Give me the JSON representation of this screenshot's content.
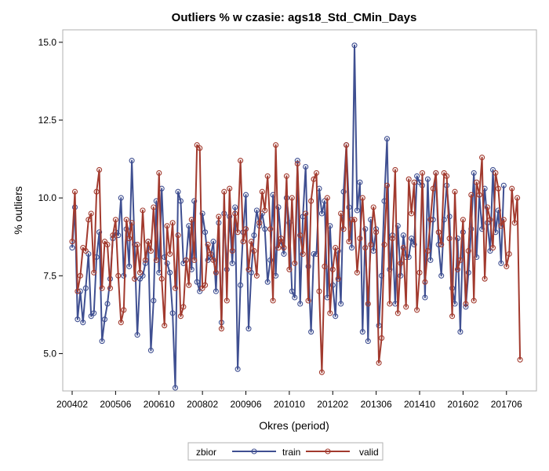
{
  "chart_data": {
    "type": "line",
    "title": "Outliers % w czasie: ags18_Std_CMin_Days",
    "xlabel": "Okres (period)",
    "ylabel": "% outliers",
    "x_ticks": [
      "200402",
      "200506",
      "200610",
      "200802",
      "200906",
      "201010",
      "201202",
      "201306",
      "201410",
      "201602",
      "201706"
    ],
    "y_ticks": [
      "5.0",
      "7.5",
      "10.0",
      "12.5",
      "15.0"
    ],
    "ylim": [
      3.8,
      15.4
    ],
    "x_start": "200402",
    "period_count": 168,
    "grid": false,
    "legend": {
      "position": "bottom",
      "title": "zbior",
      "entries": [
        "train",
        "valid"
      ]
    },
    "series": [
      {
        "name": "train",
        "color": "#3f4f91",
        "values": [
          8.4,
          9.7,
          6.1,
          7.0,
          6.0,
          7.1,
          8.2,
          6.2,
          6.3,
          8.1,
          8.9,
          5.4,
          6.1,
          6.6,
          7.4,
          8.7,
          8.9,
          8.8,
          10.0,
          7.5,
          9.0,
          7.8,
          11.2,
          8.5,
          5.6,
          7.4,
          7.5,
          7.9,
          8.6,
          5.1,
          6.7,
          9.9,
          7.6,
          10.3,
          8.1,
          7.9,
          7.6,
          6.3,
          3.9,
          10.2,
          9.9,
          7.9,
          8.0,
          9.1,
          7.7,
          9.9,
          7.3,
          7.0,
          9.5,
          8.9,
          8.0,
          8.1,
          8.6,
          7.0,
          9.2,
          6.0,
          9.5,
          7.7,
          9.4,
          7.9,
          9.7,
          4.5,
          7.2,
          8.9,
          10.1,
          5.8,
          7.6,
          8.8,
          9.6,
          9.1,
          9.5,
          9.0,
          7.3,
          8.0,
          10.1,
          7.5,
          9.7,
          8.6,
          8.2,
          10.0,
          9.2,
          7.0,
          6.8,
          11.2,
          6.6,
          9.4,
          11.0,
          7.8,
          5.7,
          8.2,
          8.2,
          10.3,
          9.5,
          9.9,
          6.8,
          9.1,
          7.2,
          6.2,
          8.3,
          6.6,
          10.2,
          11.7,
          9.7,
          8.4,
          14.9,
          9.6,
          10.5,
          5.7,
          9.0,
          5.4,
          9.3,
          8.3,
          9.0,
          5.9,
          7.5,
          9.9,
          11.9,
          7.7,
          8.8,
          6.6,
          9.1,
          7.5,
          8.8,
          8.1,
          8.1,
          8.7,
          8.5,
          10.7,
          10.5,
          10.4,
          6.8,
          10.6,
          8.0,
          9.3,
          10.8,
          8.5,
          7.5,
          9.3,
          10.4,
          9.4,
          7.1,
          6.6,
          8.7,
          5.7,
          8.9,
          6.5,
          7.6,
          9.0,
          10.8,
          8.1,
          10.1,
          9.0,
          10.3,
          9.2,
          8.3,
          10.9,
          8.9,
          9.6,
          7.9,
          10.4
        ]
      },
      {
        "name": "valid",
        "color": "#a23a2e",
        "values": [
          8.6,
          10.2,
          7.0,
          7.5,
          8.4,
          8.3,
          9.3,
          9.5,
          7.6,
          10.2,
          10.9,
          7.1,
          8.6,
          8.5,
          7.1,
          8.8,
          9.3,
          7.5,
          6.0,
          6.4,
          9.3,
          8.7,
          9.2,
          7.4,
          8.5,
          7.6,
          9.6,
          8.0,
          8.6,
          8.3,
          9.7,
          8.0,
          10.8,
          7.4,
          5.9,
          9.1,
          8.2,
          9.2,
          7.1,
          8.8,
          6.2,
          6.5,
          8.0,
          7.2,
          9.3,
          8.0,
          11.7,
          11.6,
          7.1,
          7.2,
          8.5,
          8.2,
          8.0,
          7.6,
          9.4,
          5.8,
          10.2,
          6.7,
          10.3,
          8.3,
          9.5,
          8.9,
          11.2,
          8.6,
          9.0,
          7.7,
          8.6,
          8.3,
          7.5,
          9.2,
          10.2,
          9.6,
          10.7,
          9.0,
          6.7,
          11.7,
          8.4,
          8.7,
          8.4,
          10.7,
          7.7,
          10.0,
          7.9,
          11.1,
          8.8,
          8.2,
          9.5,
          6.7,
          9.9,
          10.6,
          10.8,
          7.0,
          4.4,
          7.8,
          10.0,
          6.3,
          7.7,
          8.4,
          7.4,
          9.5,
          9.0,
          11.7,
          8.6,
          9.3,
          9.3,
          7.6,
          8.7,
          10.0,
          8.4,
          6.6,
          8.5,
          9.7,
          8.9,
          4.7,
          5.5,
          8.5,
          10.4,
          6.6,
          8.7,
          10.9,
          6.3,
          7.9,
          8.4,
          6.5,
          10.6,
          9.5,
          10.5,
          6.4,
          7.6,
          10.8,
          7.3,
          8.3,
          9.3,
          10.3,
          10.8,
          8.9,
          8.5,
          10.8,
          10.7,
          8.7,
          6.2,
          10.2,
          7.7,
          8.0,
          9.3,
          6.6,
          8.3,
          10.1,
          6.7,
          10.5,
          10.1,
          11.3,
          7.4,
          9.7,
          9.3,
          8.4,
          10.8,
          10.3,
          9.1,
          9.3,
          7.8,
          8.2,
          10.3,
          9.2,
          10.0,
          4.8
        ]
      }
    ]
  }
}
